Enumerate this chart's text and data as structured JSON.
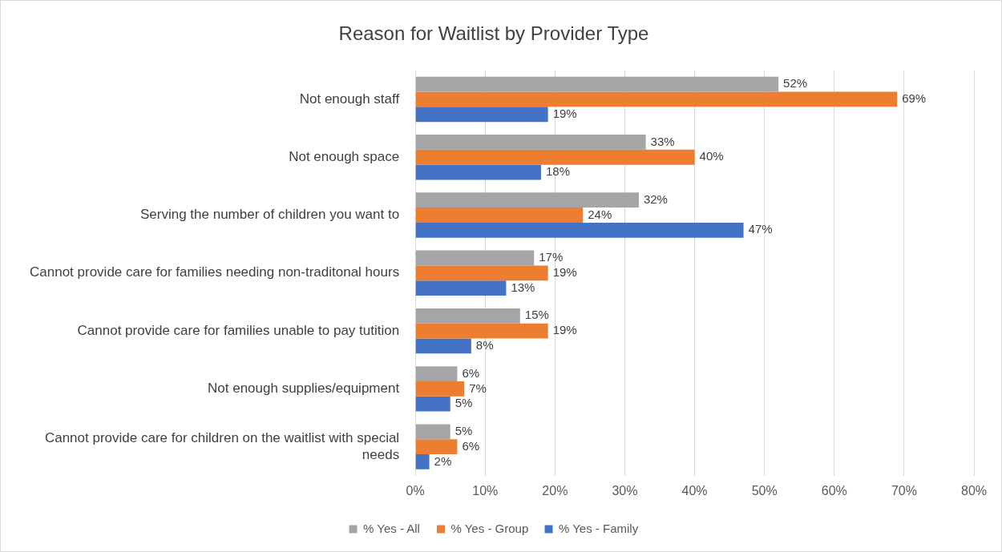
{
  "chart_data": {
    "type": "bar",
    "orientation": "horizontal",
    "title": "Reason for Waitlist by Provider Type",
    "categories": [
      "Not enough staff",
      "Not enough space",
      "Serving the number of children you want to",
      "Cannot provide care for families needing non-traditonal hours",
      "Cannot provide care for families unable to pay tutition",
      "Not enough supplies/equipment",
      "Cannot provide care for children on the waitlist with special needs"
    ],
    "series": [
      {
        "name": "% Yes - All",
        "color": "#a5a5a5",
        "values": [
          52,
          33,
          32,
          17,
          15,
          6,
          5
        ],
        "value_labels": [
          "52%",
          "33%",
          "32%",
          "17%",
          "15%",
          "6%",
          "5%"
        ]
      },
      {
        "name": "% Yes - Group",
        "color": "#ed7d31",
        "values": [
          69,
          40,
          24,
          19,
          19,
          7,
          6
        ],
        "value_labels": [
          "69%",
          "40%",
          "24%",
          "19%",
          "19%",
          "7%",
          "6%"
        ]
      },
      {
        "name": "% Yes - Family",
        "color": "#4472c4",
        "values": [
          19,
          18,
          47,
          13,
          8,
          5,
          2
        ],
        "value_labels": [
          "19%",
          "18%",
          "47%",
          "13%",
          "8%",
          "5%",
          "2%"
        ]
      }
    ],
    "xlim": [
      0,
      80
    ],
    "xticks": [
      {
        "value": 0,
        "label": "0%"
      },
      {
        "value": 10,
        "label": "10%"
      },
      {
        "value": 20,
        "label": "20%"
      },
      {
        "value": 30,
        "label": "30%"
      },
      {
        "value": 40,
        "label": "40%"
      },
      {
        "value": 50,
        "label": "50%"
      },
      {
        "value": 60,
        "label": "60%"
      },
      {
        "value": 70,
        "label": "70%"
      },
      {
        "value": 80,
        "label": "80%"
      }
    ],
    "grid": "x",
    "legend": "bottom"
  }
}
